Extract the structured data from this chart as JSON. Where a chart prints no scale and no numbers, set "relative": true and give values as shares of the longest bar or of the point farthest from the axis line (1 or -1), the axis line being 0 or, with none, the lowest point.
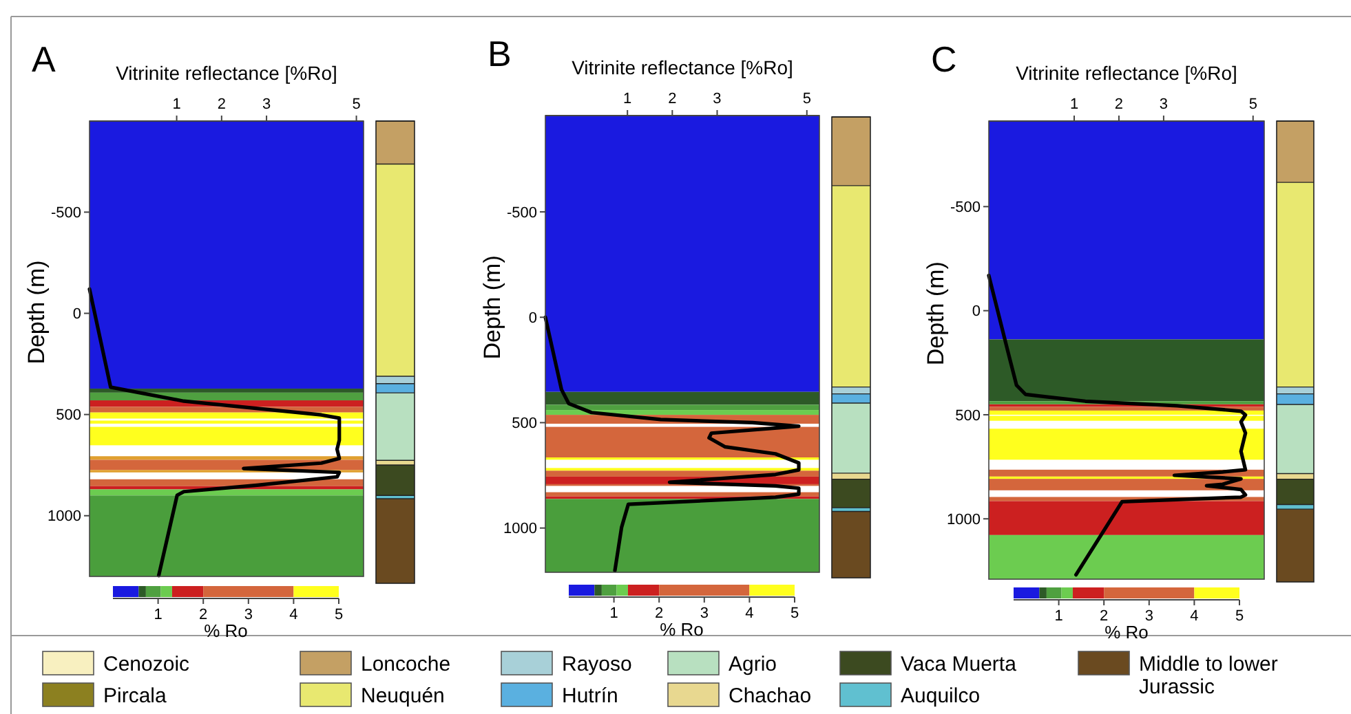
{
  "chart_data": [
    {
      "type": "line",
      "title": "A",
      "xlabel": "Vitrinite reflectance [%Ro]",
      "ylabel": "Depth (m)",
      "xlim": [
        -0.94,
        5.16
      ],
      "xticks": [
        1,
        2,
        3,
        5
      ],
      "ylim": [
        1300,
        -950
      ],
      "yticks": [
        -500,
        0,
        500,
        1000
      ],
      "series": [
        {
          "color": "#000000",
          "x": [
            -0.94,
            -0.47,
            1.16,
            2.69,
            4.22,
            4.62,
            4.62,
            4.57,
            4.62,
            4.22,
            2.49,
            4.62,
            4.57,
            2.79,
            1.16,
            1.01,
            0.6
          ],
          "values": [
            -120,
            365,
            434,
            468,
            502,
            518,
            627,
            672,
            717,
            740,
            767,
            786,
            808,
            849,
            881,
            899,
            1296
          ]
        }
      ],
      "bands": [
        {
          "axis": "y",
          "from": -950,
          "to": 372,
          "color": "#1a1ae0"
        },
        {
          "axis": "y",
          "from": 372,
          "to": 392,
          "color": "#2d5a27"
        },
        {
          "axis": "y",
          "from": 392,
          "to": 430,
          "color": "#4fa040"
        },
        {
          "axis": "y",
          "from": 430,
          "to": 462,
          "color": "#cc2020"
        },
        {
          "axis": "y",
          "from": 462,
          "to": 490,
          "color": "#d4663c"
        },
        {
          "axis": "y",
          "from": 490,
          "to": 520,
          "color": "#ffff1e"
        },
        {
          "axis": "y",
          "from": 530,
          "to": 545,
          "color": "#ffff1e"
        },
        {
          "axis": "y",
          "from": 561,
          "to": 652,
          "color": "#ffff1e"
        },
        {
          "axis": "y",
          "from": 706,
          "to": 724,
          "color": "#e0a030"
        },
        {
          "axis": "y",
          "from": 724,
          "to": 774,
          "color": "#d4663c"
        },
        {
          "axis": "y",
          "from": 774,
          "to": 786,
          "color": "#e0a030"
        },
        {
          "axis": "y",
          "from": 820,
          "to": 854,
          "color": "#d4663c"
        },
        {
          "axis": "y",
          "from": 854,
          "to": 870,
          "color": "#cc2020"
        },
        {
          "axis": "y",
          "from": 870,
          "to": 900,
          "color": "#6ccc50"
        },
        {
          "axis": "y",
          "from": 900,
          "to": 1300,
          "color": "#4a9e3c"
        }
      ]
    },
    {
      "type": "bar",
      "stacked": true,
      "relative": true,
      "categories": [
        null
      ],
      "series": [
        {
          "color": "#6a4a20",
          "values": [
            0.183
          ]
        },
        {
          "color": "#60c0d0",
          "values": [
            0.007
          ]
        },
        {
          "color": "#3c4a20",
          "values": [
            0.066
          ]
        },
        {
          "color": "#e8d890",
          "values": [
            0.01
          ]
        },
        {
          "color": "#b8e0c0",
          "values": [
            0.146
          ]
        },
        {
          "color": "#5ab0e0",
          "values": [
            0.02
          ]
        },
        {
          "color": "#a8d0d8",
          "values": [
            0.016
          ]
        },
        {
          "color": "#e8e870",
          "values": [
            0.459
          ]
        },
        {
          "color": "#c4a064",
          "values": [
            0.093
          ]
        }
      ]
    },
    {
      "type": "bar",
      "orientation": "horizontal",
      "stacked": true,
      "categories": [
        null
      ],
      "xlim": [
        0,
        5
      ],
      "xticks": [
        1,
        2,
        3,
        4,
        5
      ],
      "xlabel": "% Ro",
      "series": [
        {
          "color": "#1a1ae0",
          "values": [
            0.57
          ]
        },
        {
          "color": "#2d5a27",
          "values": [
            0.16
          ]
        },
        {
          "color": "#4fa040",
          "values": [
            0.33
          ]
        },
        {
          "color": "#6ccc50",
          "values": [
            0.25
          ]
        },
        {
          "color": "#cc2020",
          "values": [
            0.69
          ]
        },
        {
          "color": "#d4663c",
          "values": [
            2
          ]
        },
        {
          "color": "#ffff1e",
          "values": [
            1
          ]
        }
      ]
    },
    {
      "type": "line",
      "title": "B",
      "xlabel": "Vitrinite reflectance [%Ro]",
      "ylabel": "Depth (m)",
      "xlim": [
        -0.83,
        5.28
      ],
      "xticks": [
        1,
        2,
        3,
        5
      ],
      "ylim": [
        1210,
        -957
      ],
      "yticks": [
        -500,
        0,
        500,
        1000
      ],
      "series": [
        {
          "color": "#000000",
          "x": [
            -0.83,
            -0.47,
            -0.31,
            0.2,
            1.74,
            3.79,
            4.82,
            2.87,
            2.82,
            3.18,
            4.3,
            4.82,
            4.82,
            4.3,
            1.94,
            4.3,
            4.82,
            4.82,
            4.3,
            1.02,
            0.87,
            0.72
          ],
          "values": [
            0,
            343,
            409,
            452,
            485,
            500,
            517,
            550,
            572,
            615,
            648,
            691,
            724,
            746,
            783,
            800,
            811,
            839,
            854,
            887,
            996,
            1202
          ]
        }
      ],
      "bands": [
        {
          "axis": "y",
          "from": -957,
          "to": 354,
          "color": "#1a1ae0"
        },
        {
          "axis": "y",
          "from": 354,
          "to": 415,
          "color": "#2d5a27"
        },
        {
          "axis": "y",
          "from": 415,
          "to": 440,
          "color": "#4fa040"
        },
        {
          "axis": "y",
          "from": 440,
          "to": 463,
          "color": "#6ccc50"
        },
        {
          "axis": "y",
          "from": 463,
          "to": 505,
          "color": "#d4663c"
        },
        {
          "axis": "y",
          "from": 520,
          "to": 665,
          "color": "#d4663c"
        },
        {
          "axis": "y",
          "from": 665,
          "to": 676,
          "color": "#ffff1e"
        },
        {
          "axis": "y",
          "from": 715,
          "to": 728,
          "color": "#ffff1e"
        },
        {
          "axis": "y",
          "from": 728,
          "to": 756,
          "color": "#d4663c"
        },
        {
          "axis": "y",
          "from": 756,
          "to": 792,
          "color": "#cc2020"
        },
        {
          "axis": "y",
          "from": 792,
          "to": 800,
          "color": "#d4663c"
        },
        {
          "axis": "y",
          "from": 830,
          "to": 850,
          "color": "#d4663c"
        },
        {
          "axis": "y",
          "from": 850,
          "to": 862,
          "color": "#cc2020"
        },
        {
          "axis": "y",
          "from": 862,
          "to": 1210,
          "color": "#4a9e3c"
        }
      ]
    },
    {
      "type": "bar",
      "stacked": true,
      "relative": true,
      "categories": [
        null
      ],
      "series": [
        {
          "color": "#6a4a20",
          "values": [
            0.144
          ]
        },
        {
          "color": "#60c0d0",
          "values": [
            0.008
          ]
        },
        {
          "color": "#3c4a20",
          "values": [
            0.062
          ]
        },
        {
          "color": "#e8d890",
          "values": [
            0.013
          ]
        },
        {
          "color": "#b8e0c0",
          "values": [
            0.152
          ]
        },
        {
          "color": "#5ab0e0",
          "values": [
            0.02
          ]
        },
        {
          "color": "#a8d0d8",
          "values": [
            0.015
          ]
        },
        {
          "color": "#e8e870",
          "values": [
            0.437
          ]
        },
        {
          "color": "#c4a064",
          "values": [
            0.149
          ]
        }
      ]
    },
    {
      "type": "bar",
      "orientation": "horizontal",
      "stacked": true,
      "categories": [
        null
      ],
      "xlim": [
        0,
        5
      ],
      "xticks": [
        1,
        2,
        3,
        4,
        5
      ],
      "xlabel": "% Ro",
      "series": [
        {
          "color": "#1a1ae0",
          "values": [
            0.57
          ]
        },
        {
          "color": "#2d5a27",
          "values": [
            0.16
          ]
        },
        {
          "color": "#4fa040",
          "values": [
            0.33
          ]
        },
        {
          "color": "#6ccc50",
          "values": [
            0.25
          ]
        },
        {
          "color": "#cc2020",
          "values": [
            0.69
          ]
        },
        {
          "color": "#d4663c",
          "values": [
            2
          ]
        },
        {
          "color": "#ffff1e",
          "values": [
            1
          ]
        }
      ]
    },
    {
      "type": "line",
      "title": "C",
      "xlabel": "Vitrinite reflectance [%Ro]",
      "ylabel": "Depth (m)",
      "xlim": [
        -0.91,
        5.25
      ],
      "xticks": [
        1,
        2,
        3,
        5
      ],
      "ylim": [
        1290,
        -911
      ],
      "yticks": [
        -500,
        0,
        500,
        1000
      ],
      "series": [
        {
          "color": "#000000",
          "x": [
            -0.91,
            -0.5,
            -0.29,
            -0.09,
            1.25,
            3.3,
            4.73,
            4.83,
            4.73,
            4.83,
            4.73,
            4.83,
            4.32,
            3.24,
            4.73,
            4.32,
            3.96,
            4.73,
            4.83,
            4.73,
            2.07,
            1.04
          ],
          "values": [
            -169,
            182,
            358,
            402,
            435,
            457,
            483,
            501,
            534,
            588,
            676,
            764,
            775,
            791,
            808,
            834,
            841,
            859,
            885,
            896,
            918,
            1269
          ]
        }
      ],
      "bands": [
        {
          "axis": "y",
          "from": -911,
          "to": 138,
          "color": "#1a1ae0"
        },
        {
          "axis": "y",
          "from": 138,
          "to": 435,
          "color": "#2d5a27"
        },
        {
          "axis": "y",
          "from": 435,
          "to": 450,
          "color": "#4fa040"
        },
        {
          "axis": "y",
          "from": 450,
          "to": 462,
          "color": "#cc2020"
        },
        {
          "axis": "y",
          "from": 462,
          "to": 480,
          "color": "#d4663c"
        },
        {
          "axis": "y",
          "from": 480,
          "to": 500,
          "color": "#ffff1e"
        },
        {
          "axis": "y",
          "from": 505,
          "to": 529,
          "color": "#ffff1e"
        },
        {
          "axis": "y",
          "from": 567,
          "to": 716,
          "color": "#ffff1e"
        },
        {
          "axis": "y",
          "from": 764,
          "to": 797,
          "color": "#d4663c"
        },
        {
          "axis": "y",
          "from": 797,
          "to": 808,
          "color": "#ffff1e"
        },
        {
          "axis": "y",
          "from": 808,
          "to": 863,
          "color": "#d4663c"
        },
        {
          "axis": "y",
          "from": 895,
          "to": 915,
          "color": "#d4663c"
        },
        {
          "axis": "y",
          "from": 915,
          "to": 1078,
          "color": "#cc2020"
        },
        {
          "axis": "y",
          "from": 1078,
          "to": 1290,
          "color": "#6ccc50"
        }
      ]
    },
    {
      "type": "bar",
      "stacked": true,
      "relative": true,
      "categories": [
        null
      ],
      "series": [
        {
          "color": "#6a4a20",
          "values": [
            0.158
          ]
        },
        {
          "color": "#60c0d0",
          "values": [
            0.01
          ]
        },
        {
          "color": "#3c4a20",
          "values": [
            0.055
          ]
        },
        {
          "color": "#e8d890",
          "values": [
            0.012
          ]
        },
        {
          "color": "#b8e0c0",
          "values": [
            0.15
          ]
        },
        {
          "color": "#5ab0e0",
          "values": [
            0.023
          ]
        },
        {
          "color": "#a8d0d8",
          "values": [
            0.015
          ]
        },
        {
          "color": "#e8e870",
          "values": [
            0.444
          ]
        },
        {
          "color": "#c4a064",
          "values": [
            0.133
          ]
        }
      ]
    },
    {
      "type": "bar",
      "orientation": "horizontal",
      "stacked": true,
      "categories": [
        null
      ],
      "xlim": [
        0,
        5
      ],
      "xticks": [
        1,
        2,
        3,
        4,
        5
      ],
      "xlabel": "% Ro",
      "series": [
        {
          "color": "#1a1ae0",
          "values": [
            0.57
          ]
        },
        {
          "color": "#2d5a27",
          "values": [
            0.16
          ]
        },
        {
          "color": "#4fa040",
          "values": [
            0.33
          ]
        },
        {
          "color": "#6ccc50",
          "values": [
            0.25
          ]
        },
        {
          "color": "#cc2020",
          "values": [
            0.69
          ]
        },
        {
          "color": "#d4663c",
          "values": [
            2
          ]
        },
        {
          "color": "#ffff1e",
          "values": [
            1
          ]
        }
      ]
    },
    {
      "type": "other",
      "legend": "bottom",
      "series": [
        {
          "name": "Cenozoic",
          "color": "#f8f0c0"
        },
        {
          "name": "Pircala",
          "color": "#8c8020"
        },
        {
          "name": "Loncoche",
          "color": "#c4a064"
        },
        {
          "name": "Neuquén",
          "color": "#e8e870"
        },
        {
          "name": "Rayoso",
          "color": "#a8d0d8"
        },
        {
          "name": "Hutrín",
          "color": "#5ab0e0"
        },
        {
          "name": "Agrio",
          "color": "#b8e0c0"
        },
        {
          "name": "Chachao",
          "color": "#e8d890"
        },
        {
          "name": "Vaca Muerta",
          "color": "#3c4a20"
        },
        {
          "name": "Auquilco",
          "color": "#60c0d0"
        },
        {
          "name": "Middle to lower Jurassic",
          "color": "#6a4a20"
        }
      ]
    }
  ]
}
